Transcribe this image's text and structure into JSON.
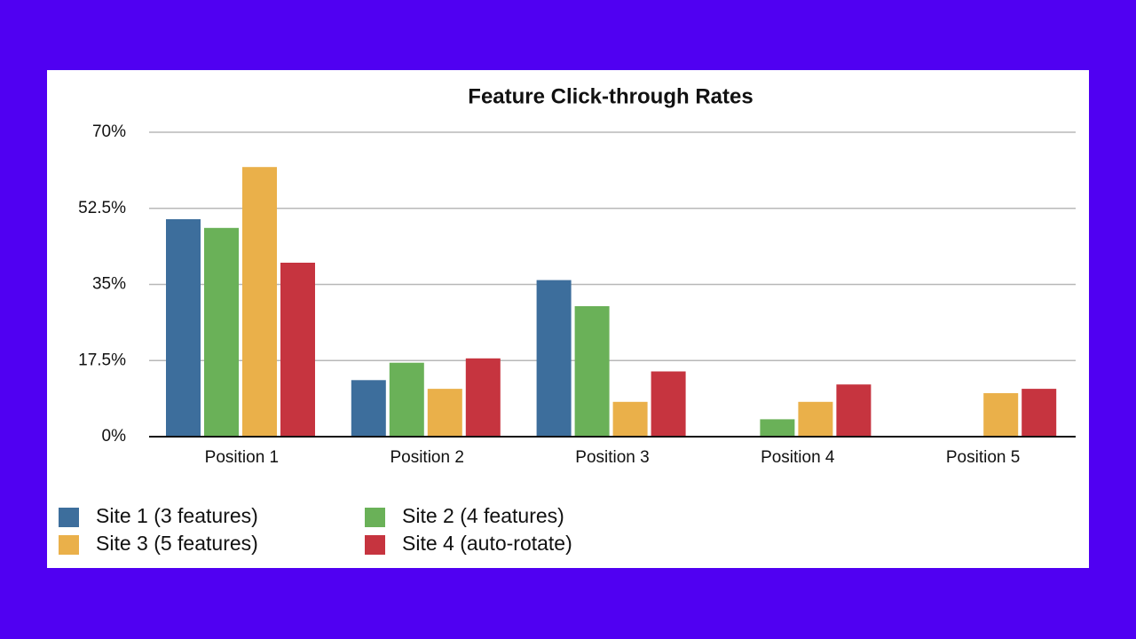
{
  "chart_data": {
    "type": "bar",
    "title": "Feature Click-through Rates",
    "categories": [
      "Position 1",
      "Position 2",
      "Position 3",
      "Position 4",
      "Position 5"
    ],
    "series": [
      {
        "name": "Site 1 (3 features)",
        "color": "#3d6e9c",
        "values": [
          50,
          13,
          36,
          null,
          null
        ]
      },
      {
        "name": "Site 2 (4 features)",
        "color": "#6ab158",
        "values": [
          48,
          17,
          30,
          4,
          null
        ]
      },
      {
        "name": "Site 3 (5 features)",
        "color": "#eab04a",
        "values": [
          62,
          11,
          8,
          8,
          10
        ]
      },
      {
        "name": "Site 4 (auto-rotate)",
        "color": "#c6343f",
        "values": [
          40,
          18,
          15,
          12,
          11
        ]
      }
    ],
    "ylim": [
      0,
      70
    ],
    "yticks": [
      {
        "value": 0,
        "label": "0%"
      },
      {
        "value": 17.5,
        "label": "17.5%"
      },
      {
        "value": 35,
        "label": "35%"
      },
      {
        "value": 52.5,
        "label": "52.5%"
      },
      {
        "value": 70,
        "label": "70%"
      }
    ],
    "grid": true
  }
}
